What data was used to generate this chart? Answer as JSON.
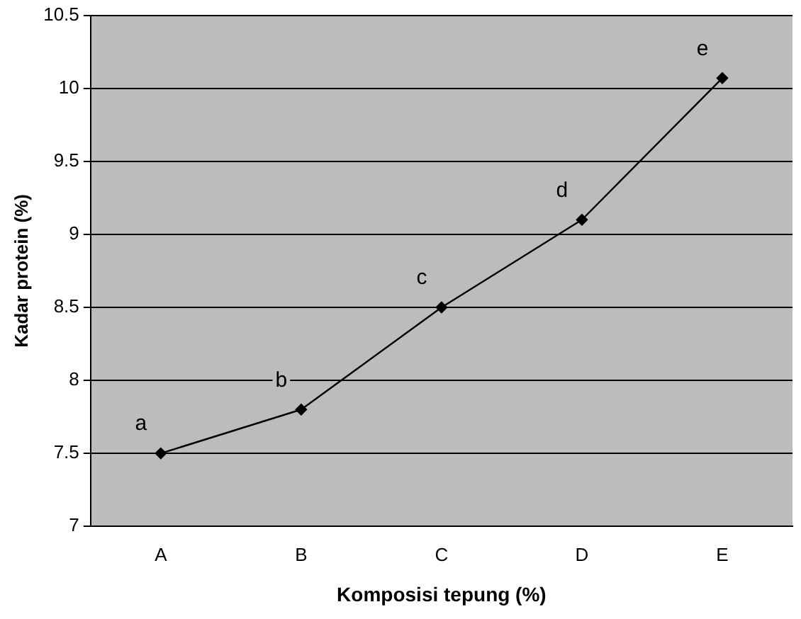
{
  "chart_data": {
    "type": "line",
    "xlabel": "Komposisi tepung (%)",
    "ylabel": "Kadar protein (%)",
    "categories": [
      "A",
      "B",
      "C",
      "D",
      "E"
    ],
    "series": [
      {
        "color": "#000000",
        "values": [
          7.5,
          7.8,
          8.5,
          9.1,
          10.07
        ]
      }
    ],
    "ylim": [
      7,
      10.5
    ],
    "yticks": [
      {
        "value": 7,
        "label": "7"
      },
      {
        "value": 7.5,
        "label": "7.5"
      },
      {
        "value": 8,
        "label": "8"
      },
      {
        "value": 8.5,
        "label": "8.5"
      },
      {
        "value": 9,
        "label": "9"
      },
      {
        "value": 9.5,
        "label": "9.5"
      },
      {
        "value": 10,
        "label": "10"
      },
      {
        "value": 10.5,
        "label": "10.5"
      }
    ],
    "grid": "y",
    "legend": false,
    "marker": "diamond",
    "line_style": "solid",
    "annotations": [
      {
        "text": "a",
        "x": "A",
        "y": 7.5
      },
      {
        "text": "b",
        "x": "B",
        "y": 7.8
      },
      {
        "text": "c",
        "x": "C",
        "y": 8.5
      },
      {
        "text": "d",
        "x": "D",
        "y": 9.1
      },
      {
        "text": "e",
        "x": "E",
        "y": 10.07
      }
    ]
  }
}
